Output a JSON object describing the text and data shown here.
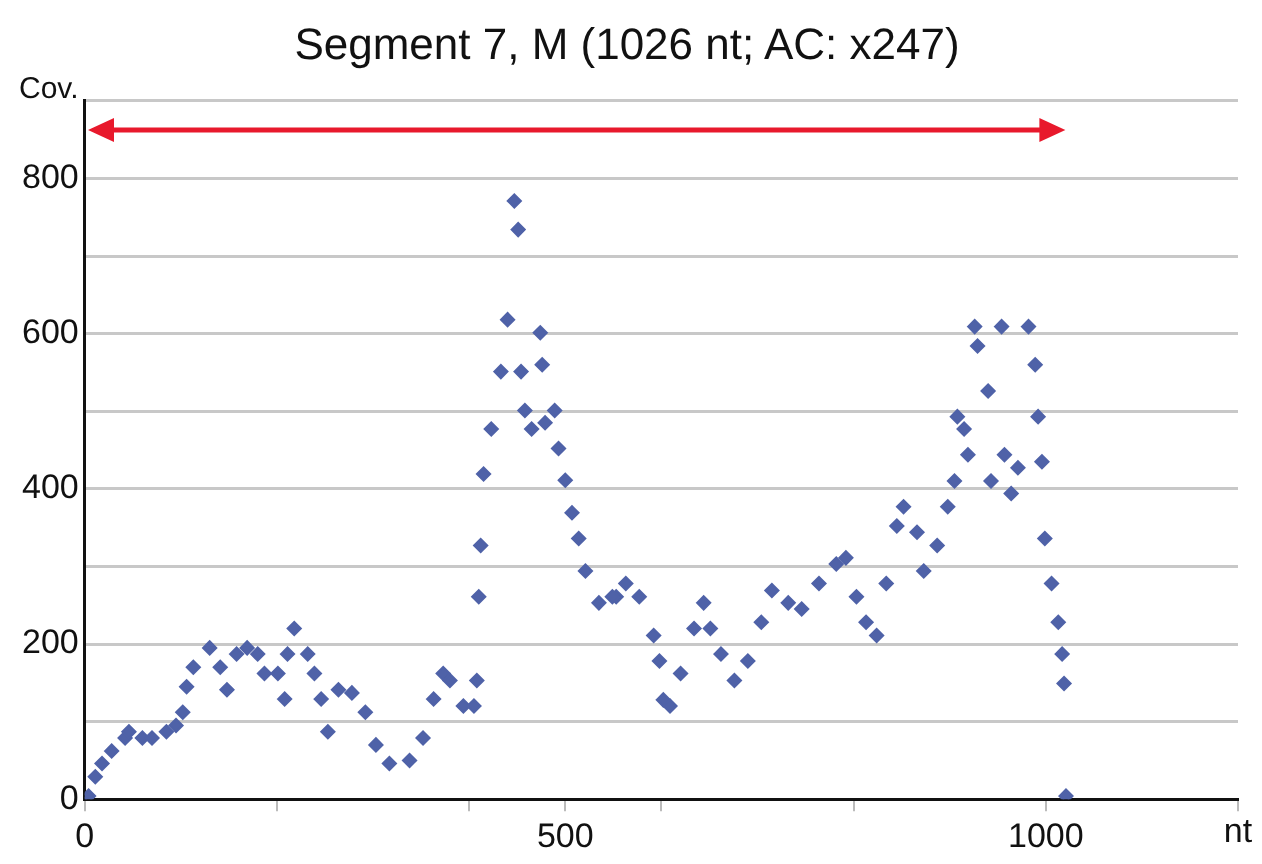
{
  "chart_data": {
    "type": "scatter",
    "title": "Segment 7, M (1026 nt; AC: x247)",
    "xlabel": "nt",
    "ylabel": "Cov.",
    "xlim": [
      0,
      1200
    ],
    "xticks": [
      0,
      {
        "value": 200,
        "label": null
      },
      {
        "value": 400,
        "label": null
      },
      500,
      {
        "value": 600,
        "label": null
      },
      {
        "value": 800,
        "label": null
      },
      1000,
      {
        "value": 1200,
        "label": null
      }
    ],
    "ylim": [
      0,
      900
    ],
    "yticks": [
      0,
      {
        "value": 100,
        "label": null
      },
      200,
      {
        "value": 300,
        "label": null
      },
      400,
      {
        "value": 500,
        "label": null
      },
      600,
      {
        "value": 700,
        "label": null
      },
      800,
      {
        "value": 900,
        "label": null
      }
    ],
    "grid": "y",
    "marker": "diamond",
    "legend": false,
    "series": [
      {
        "color": "#4f62a8",
        "x": [
          4,
          11,
          18,
          28,
          42,
          46,
          60,
          70,
          85,
          95,
          102,
          106,
          113,
          130,
          141,
          148,
          158,
          169,
          180,
          187,
          201,
          208,
          211,
          218,
          232,
          239,
          246,
          253,
          264,
          278,
          292,
          303,
          317,
          338,
          352,
          363,
          373,
          380,
          394,
          405,
          408,
          410,
          412,
          415,
          423,
          433,
          440,
          447,
          451,
          454,
          458,
          465,
          474,
          476,
          479,
          489,
          493,
          500,
          507,
          514,
          521,
          535,
          553,
          549,
          563,
          577,
          592,
          598,
          602,
          609,
          620,
          634,
          644,
          651,
          662,
          676,
          690,
          704,
          715,
          732,
          746,
          764,
          782,
          792,
          803,
          813,
          824,
          834,
          845,
          852,
          866,
          873,
          887,
          898,
          905,
          908,
          915,
          919,
          926,
          929,
          940,
          943,
          954,
          957,
          964,
          971,
          982,
          989,
          992,
          996,
          999,
          1006,
          1013,
          1017,
          1019,
          1021
        ],
        "values": [
          4,
          29,
          46,
          62,
          79,
          87,
          79,
          79,
          87,
          95,
          112,
          145,
          170,
          195,
          170,
          141,
          187,
          195,
          187,
          162,
          162,
          129,
          187,
          220,
          187,
          162,
          129,
          87,
          141,
          137,
          112,
          70,
          46,
          50,
          79,
          129,
          162,
          153,
          120,
          120,
          153,
          261,
          327,
          419,
          477,
          551,
          618,
          771,
          734,
          551,
          501,
          477,
          601,
          560,
          485,
          501,
          452,
          411,
          369,
          336,
          294,
          253,
          261,
          261,
          278,
          261,
          211,
          178,
          128,
          120,
          162,
          220,
          253,
          220,
          187,
          153,
          178,
          228,
          269,
          253,
          245,
          278,
          303,
          311,
          261,
          228,
          211,
          278,
          352,
          377,
          344,
          294,
          327,
          377,
          410,
          493,
          477,
          444,
          609,
          584,
          526,
          410,
          609,
          444,
          394,
          427,
          609,
          560,
          493,
          435,
          336,
          278,
          228,
          187,
          149,
          4
        ]
      }
    ]
  }
}
